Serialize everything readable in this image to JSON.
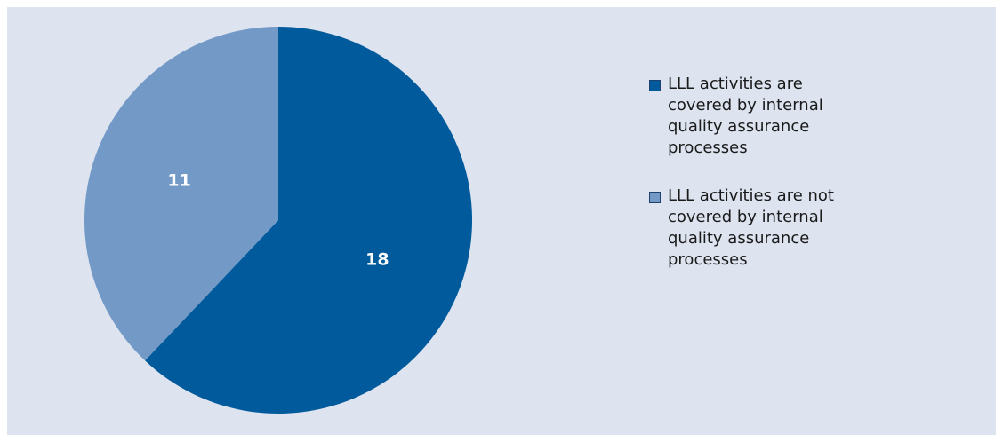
{
  "chart_data": {
    "type": "pie",
    "title": "",
    "slices": [
      {
        "label": "LLL activities are covered by internal quality assurance processes",
        "value": 18,
        "display": "18",
        "color": "#005a9c"
      },
      {
        "label": "LLL activities are not covered by internal quality assurance processes",
        "value": 11,
        "display": "11",
        "color": "#7399c6"
      }
    ],
    "legend": {
      "placement": "right"
    },
    "start_angle": "12 o'clock",
    "direction": "clockwise"
  },
  "colors": {
    "background": "#dde4f0"
  }
}
